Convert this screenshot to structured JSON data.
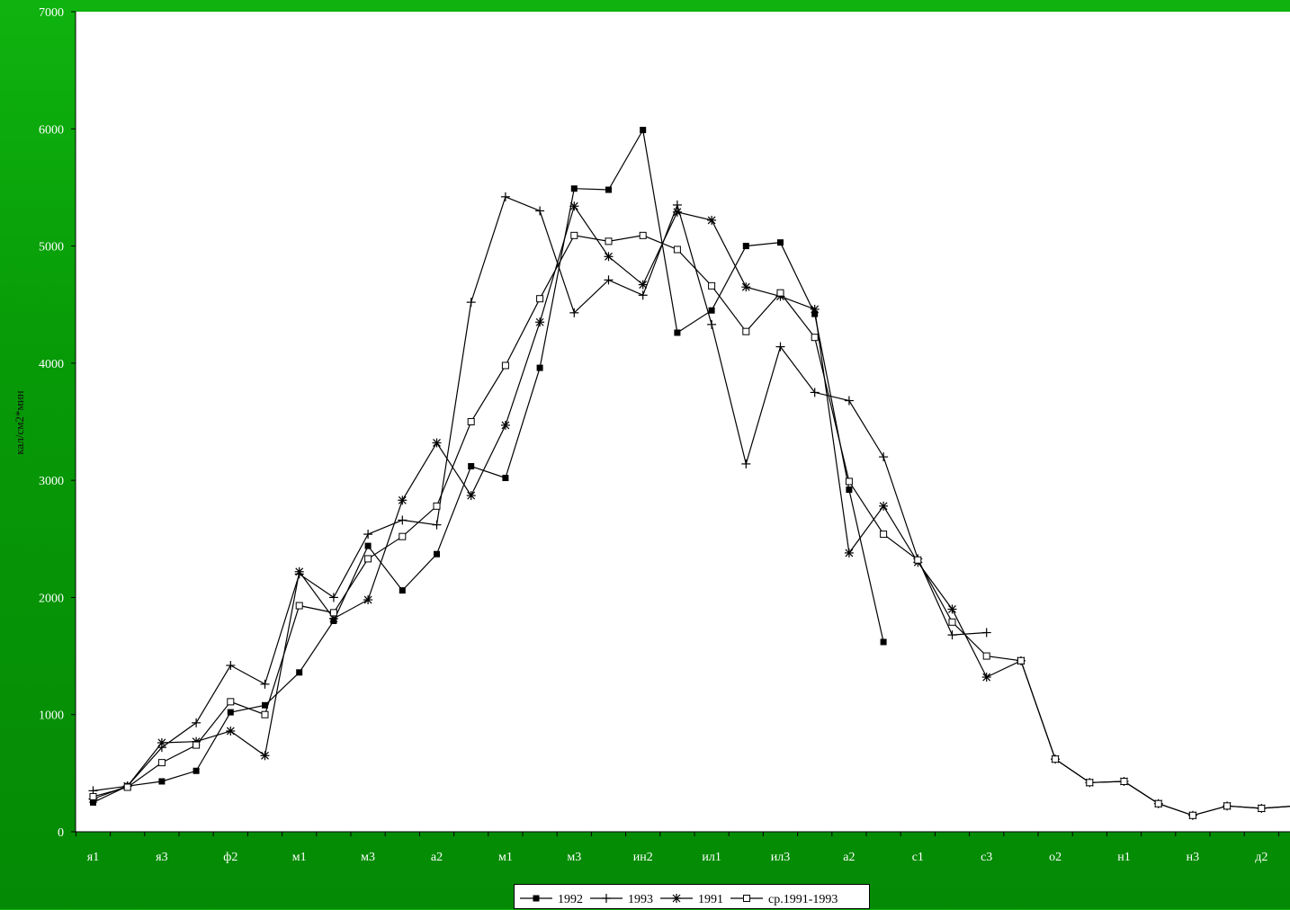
{
  "chart_data": {
    "type": "line",
    "title": "",
    "xlabel": "",
    "ylabel": "кал/см2*мин",
    "ylim": [
      0,
      7000
    ],
    "yticks": [
      0,
      1000,
      2000,
      3000,
      4000,
      5000,
      6000,
      7000
    ],
    "x_tick_labels": [
      "я1",
      "я3",
      "ф2",
      "м1",
      "м3",
      "а2",
      "м1",
      "м3",
      "ин2",
      "ил1",
      "ил3",
      "а2",
      "с1",
      "с3",
      "о2",
      "н1",
      "н3",
      "д2"
    ],
    "x_count": 36,
    "grid": false,
    "legend_position": "bottom",
    "series": [
      {
        "name": "1992",
        "marker": "filled-square",
        "values": [
          250,
          390,
          430,
          520,
          1020,
          1080,
          1360,
          1800,
          2440,
          2060,
          2370,
          3120,
          3020,
          3960,
          5490,
          5480,
          5990,
          4260,
          4450,
          5000,
          5030,
          4420,
          2920,
          1620,
          null,
          null,
          null,
          null,
          null,
          null,
          null,
          null,
          null,
          null,
          null,
          null
        ]
      },
      {
        "name": "1993",
        "marker": "plus",
        "values": [
          350,
          390,
          720,
          930,
          1420,
          1260,
          2200,
          2000,
          2540,
          2660,
          2620,
          4520,
          5420,
          5300,
          4430,
          4710,
          4580,
          5350,
          4330,
          3140,
          4140,
          3750,
          3680,
          3200,
          2330,
          1680,
          1700,
          null,
          null,
          null,
          null,
          null,
          null,
          null,
          null,
          null
        ]
      },
      {
        "name": "1991",
        "marker": "asterisk",
        "values": [
          280,
          390,
          760,
          770,
          860,
          650,
          2220,
          1820,
          1980,
          2830,
          3320,
          2870,
          3470,
          4350,
          5340,
          4910,
          4670,
          5290,
          5220,
          4650,
          4570,
          4460,
          2380,
          2780,
          2300,
          1900,
          1320,
          1460,
          620,
          420,
          430,
          240,
          140,
          220,
          200,
          220
        ]
      },
      {
        "name": "ср.1991-1993",
        "marker": "open-square",
        "values": [
          300,
          380,
          590,
          740,
          1110,
          1000,
          1930,
          1870,
          2330,
          2520,
          2780,
          3500,
          3980,
          4550,
          5090,
          5040,
          5090,
          4970,
          4660,
          4270,
          4600,
          4220,
          2990,
          2540,
          2320,
          1790,
          1500,
          1460,
          620,
          420,
          430,
          240,
          140,
          220,
          200,
          220
        ]
      }
    ]
  }
}
